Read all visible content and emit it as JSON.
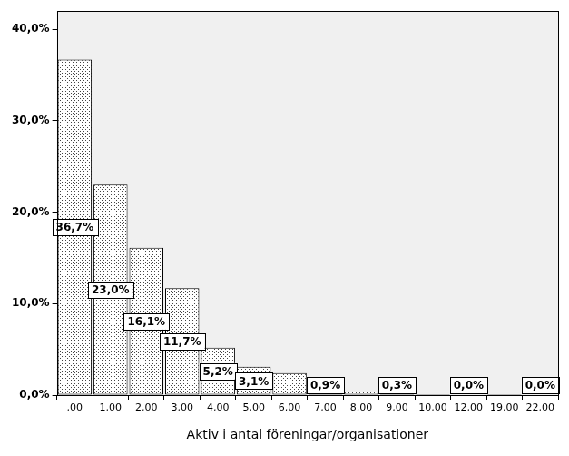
{
  "chart_data": {
    "type": "bar",
    "x_label": "Aktiv i antal föreningar/organisationer",
    "categories": [
      ",00",
      "1,00",
      "2,00",
      "3,00",
      "4,00",
      "5,00",
      "6,00",
      "7,00",
      "8,00",
      "9,00",
      "10,00",
      "12,00",
      "19,00",
      "22,00"
    ],
    "values": [
      36.7,
      23.0,
      16.1,
      11.7,
      5.2,
      3.1,
      2.4,
      0.9,
      0.4,
      0.3,
      0.1,
      0.04,
      0.1,
      0.04
    ],
    "value_labels": [
      "36,7%",
      "23,0%",
      "16,1%",
      "11,7%",
      "5,2%",
      "3,1%",
      null,
      "0,9%",
      null,
      "0,3%",
      null,
      "0,0%",
      null,
      "0,0%"
    ],
    "data_labels": true,
    "color": "#444444",
    "ylim": [
      0,
      42
    ],
    "yticks": [
      {
        "value": 0,
        "label": "0,0%"
      },
      {
        "value": 10,
        "label": "10,0%"
      },
      {
        "value": 20,
        "label": "20,0%"
      },
      {
        "value": 30,
        "label": "30,0%"
      },
      {
        "value": 40,
        "label": "40,0%"
      }
    ],
    "grid": false
  }
}
